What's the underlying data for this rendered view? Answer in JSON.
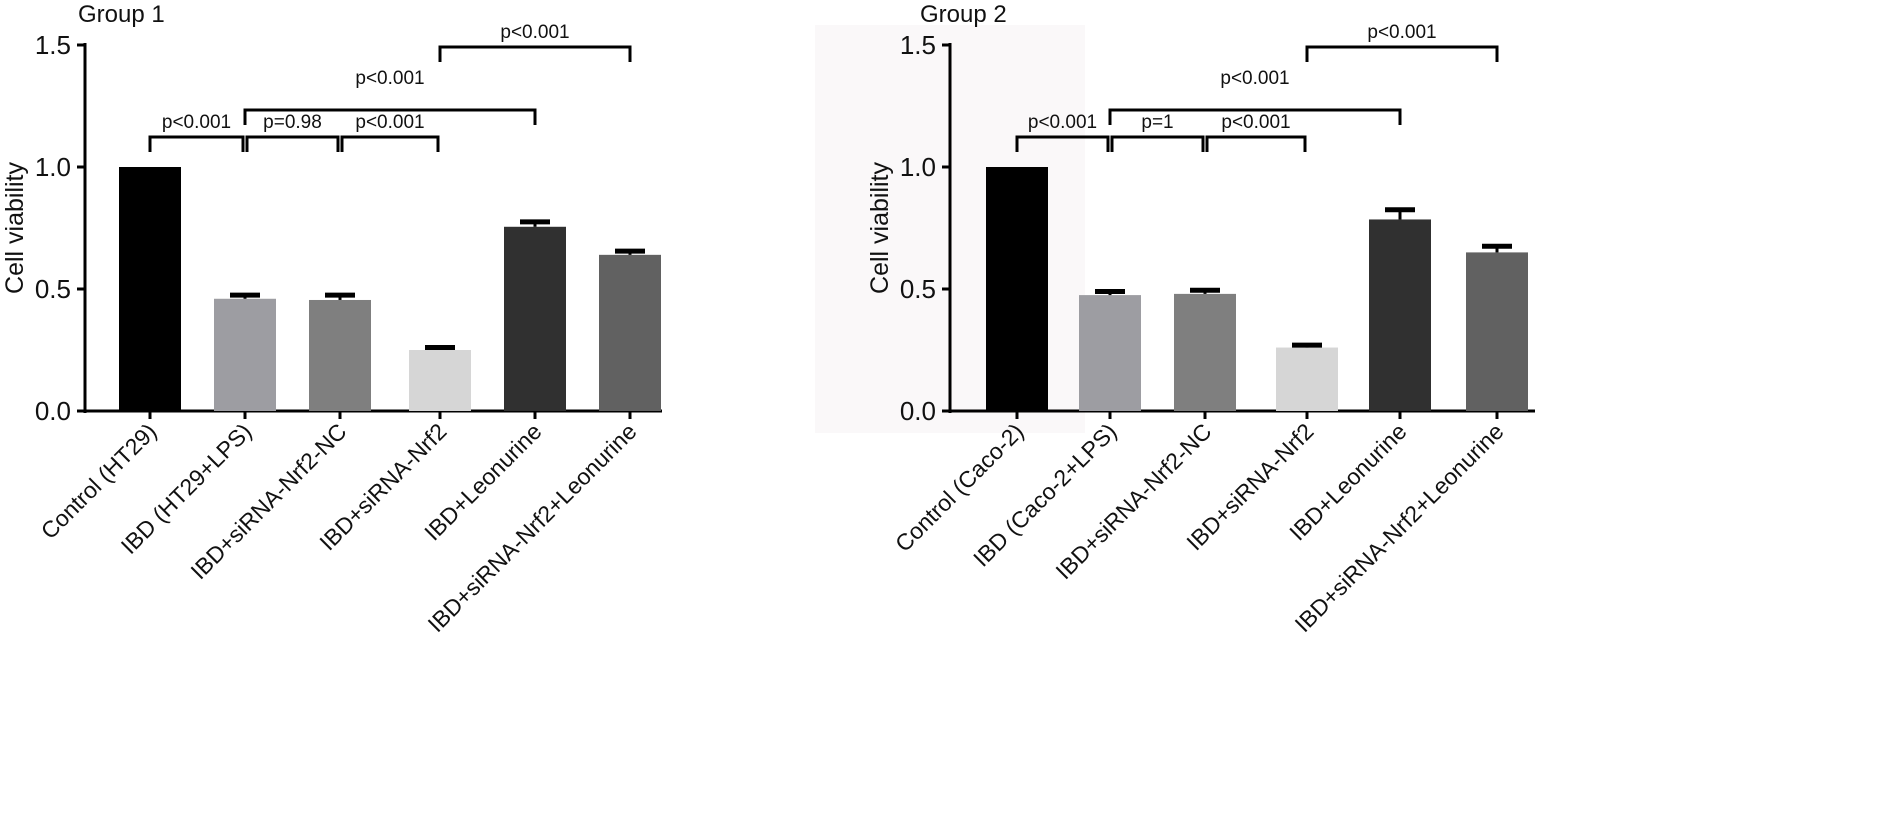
{
  "chart_data": [
    {
      "type": "bar",
      "title": "Group 1",
      "ylabel": "Cell viability",
      "ylim": [
        0,
        1.5
      ],
      "yticks": [
        "0.0",
        "0.5",
        "1.0",
        "1.5"
      ],
      "categories": [
        "Control (HT29)",
        "IBD (HT29+LPS)",
        "IBD+siRNA-Nrf2-NC",
        "IBD+siRNA-Nrf2",
        "IBD+Leonurine",
        "IBD+siRNA-Nrf2+Leonurine"
      ],
      "values": [
        1.0,
        0.46,
        0.455,
        0.25,
        0.755,
        0.64
      ],
      "errors": [
        0,
        0.015,
        0.02,
        0.01,
        0.02,
        0.015
      ],
      "colors": [
        "#000000",
        "#9d9da2",
        "#7f7f7f",
        "#d6d6d6",
        "#303030",
        "#616161"
      ],
      "comparisons": [
        {
          "from": 0,
          "to": 1,
          "label": "p<0.001",
          "level": 0
        },
        {
          "from": 1,
          "to": 2,
          "label": "p=0.98",
          "level": 0
        },
        {
          "from": 2,
          "to": 3,
          "label": "p<0.001",
          "level": 0
        },
        {
          "from": 1,
          "to": 4,
          "label": "p<0.001",
          "level": 1
        },
        {
          "from": 3,
          "to": 5,
          "label": "p<0.001",
          "level": 2
        }
      ]
    },
    {
      "type": "bar",
      "title": "Group 2",
      "ylabel": "Cell viability",
      "ylim": [
        0,
        1.5
      ],
      "yticks": [
        "0.0",
        "0.5",
        "1.0",
        "1.5"
      ],
      "categories": [
        "Control (Caco-2)",
        "IBD (Caco-2+LPS)",
        "IBD+siRNA-Nrf2-NC",
        "IBD+siRNA-Nrf2",
        "IBD+Leonurine",
        "IBD+siRNA-Nrf2+Leonurine"
      ],
      "values": [
        1.0,
        0.475,
        0.48,
        0.26,
        0.785,
        0.65
      ],
      "errors": [
        0,
        0.015,
        0.015,
        0.01,
        0.04,
        0.025
      ],
      "colors": [
        "#000000",
        "#9d9da2",
        "#7f7f7f",
        "#d6d6d6",
        "#303030",
        "#616161"
      ],
      "comparisons": [
        {
          "from": 0,
          "to": 1,
          "label": "p<0.001",
          "level": 0
        },
        {
          "from": 1,
          "to": 2,
          "label": "p=1",
          "level": 0
        },
        {
          "from": 2,
          "to": 3,
          "label": "p<0.001",
          "level": 0
        },
        {
          "from": 1,
          "to": 4,
          "label": "p<0.001",
          "level": 1
        },
        {
          "from": 3,
          "to": 5,
          "label": "p<0.001",
          "level": 2
        }
      ]
    }
  ]
}
